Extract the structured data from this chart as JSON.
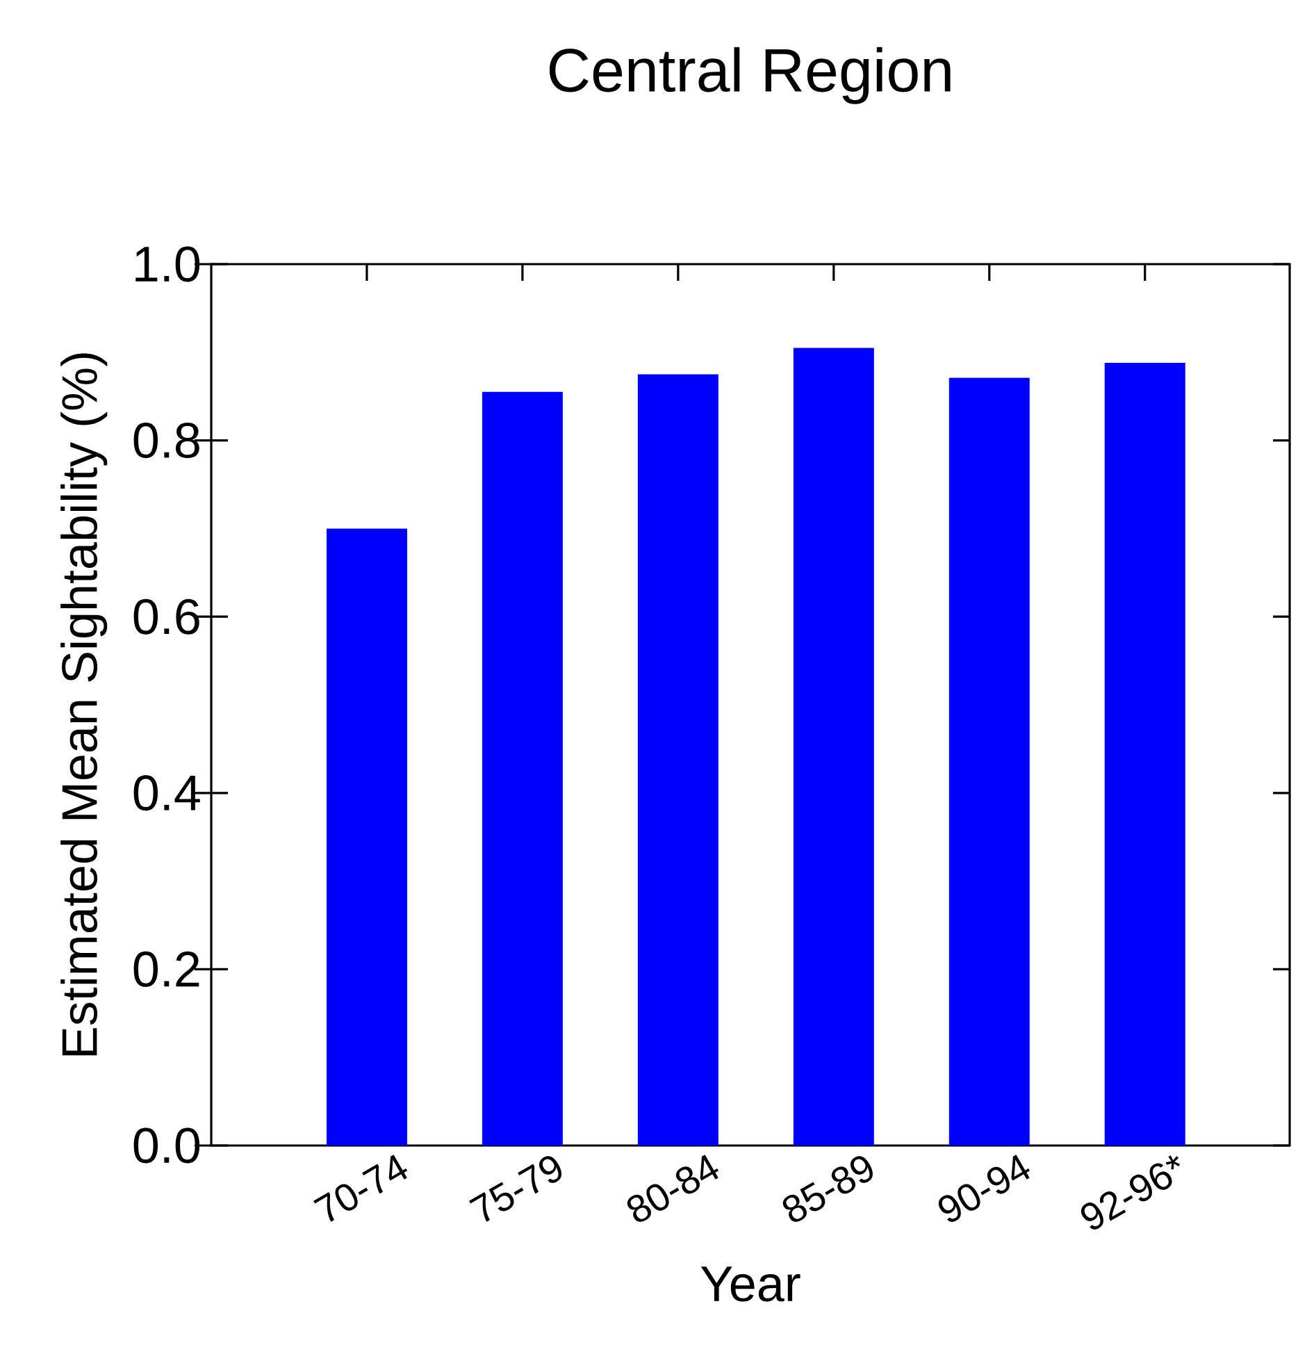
{
  "chart_data": {
    "type": "bar",
    "title": "Central Region",
    "xlabel": "Year",
    "ylabel": "Estimated Mean Sightability (%)",
    "categories": [
      "70-74",
      "75-79",
      "80-84",
      "85-89",
      "90-94",
      "92-96*"
    ],
    "values": [
      0.7,
      0.855,
      0.875,
      0.905,
      0.871,
      0.888
    ],
    "color": "#0000ff",
    "ylim": [
      0,
      1.0
    ],
    "yticks": [
      {
        "value": 0,
        "label": "0.0"
      },
      {
        "value": 0.2,
        "label": "0.2"
      },
      {
        "value": 0.4,
        "label": "0.4"
      },
      {
        "value": 0.6,
        "label": "0.6"
      },
      {
        "value": 0.8,
        "label": "0.8"
      },
      {
        "value": 1.0,
        "label": "1.0"
      }
    ],
    "grid": false
  }
}
